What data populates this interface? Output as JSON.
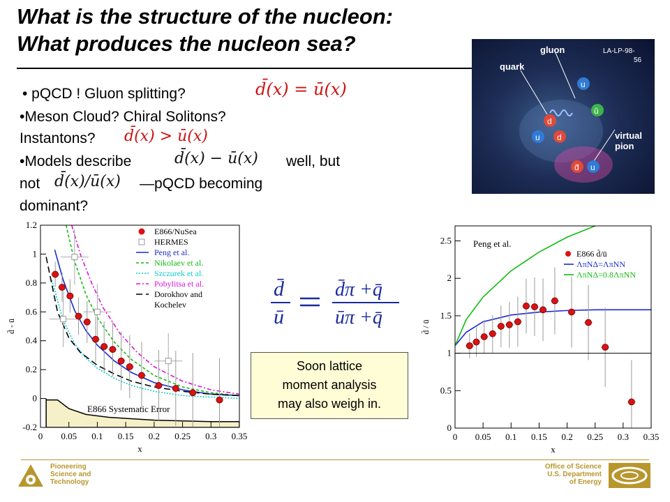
{
  "title": {
    "line1": "What is the structure of the nucleon:",
    "line2": "What produces the nucleon sea?"
  },
  "bullets": {
    "b1": "• pQCD ! Gluon splitting?",
    "b2": "•Meson Cloud?  Chiral Solitons?",
    "b3": "Instantons?",
    "b4a": "•Models describe",
    "b4b": "well, but",
    "b5a": "not",
    "b5b": "—pQCD becoming",
    "b6": "dominant?"
  },
  "equations": {
    "eq1": "d̄(x) = ū(x)",
    "eq2": "d̄(x) > ū(x)",
    "eq3": "d̄(x) − ū(x)",
    "eq4": "d̄(x)/ū(x)",
    "ratio_lhs_num": "d̄",
    "ratio_lhs_den": "ū",
    "ratio_rhs_num": "d̄π +q̄",
    "ratio_rhs_den": "ūπ +q̄"
  },
  "photo": {
    "label_ref": "LA-LP-98-",
    "label_ref2": "56",
    "label_gluon": "gluon",
    "label_quark": "quark",
    "label_virtual": "virtual",
    "label_pion": "pion",
    "q_u": "u",
    "q_d": "d",
    "q_ubar": "ū",
    "q_dbar": "d̄"
  },
  "callout": {
    "line1": "Soon lattice",
    "line2": "moment analysis",
    "line3": "may also weigh in."
  },
  "footer": {
    "left1": "Pioneering",
    "left2": "Science and",
    "left3": "Technology",
    "right1": "Office of Science",
    "right2": "U.S. Department",
    "right3": "of Energy"
  },
  "colors": {
    "accent": "#b8962e",
    "data_red": "#dd1111",
    "peng": "#1a2acc",
    "nikolaev": "#11bb11",
    "szczurek": "#11cccc",
    "pobylitsa": "#dd11dd",
    "dorokhov": "#000000"
  },
  "chart_data": [
    {
      "type": "scatter",
      "xlabel": "x",
      "ylabel": "d̄ - ū",
      "xlim": [
        0,
        0.35
      ],
      "ylim": [
        -0.2,
        1.2
      ],
      "xticks": [
        "0",
        "0.05",
        "0.1",
        "0.15",
        "0.2",
        "0.25",
        "0.3",
        "0.35"
      ],
      "yticks": [
        "-0.2",
        "0",
        "0.2",
        "0.4",
        "0.6",
        "0.8",
        "1",
        "1.2"
      ],
      "annotation": "E866 Systematic Error",
      "legend": {
        "placement": "top-right",
        "entries": [
          "E866/NuSea",
          "HERMES",
          "Peng et al.",
          "Nikolaev et al.",
          "Szczurek et al.",
          "Pobylitsa et al.",
          "Dorokhov and",
          "Kochelev"
        ]
      },
      "series": [
        {
          "name": "E866/NuSea",
          "kind": "points",
          "x": [
            0.026,
            0.038,
            0.052,
            0.067,
            0.082,
            0.097,
            0.112,
            0.127,
            0.142,
            0.157,
            0.178,
            0.208,
            0.238,
            0.268,
            0.315
          ],
          "y": [
            0.86,
            0.77,
            0.71,
            0.57,
            0.53,
            0.41,
            0.36,
            0.34,
            0.26,
            0.22,
            0.16,
            0.09,
            0.07,
            0.04,
            -0.01
          ]
        },
        {
          "name": "HERMES",
          "kind": "open-squares",
          "x": [
            0.04,
            0.1,
            0.06,
            0.225
          ],
          "y": [
            0.55,
            0.6,
            0.98,
            0.26
          ]
        },
        {
          "name": "Peng et al.",
          "kind": "curve",
          "x": [
            0.025,
            0.04,
            0.06,
            0.08,
            0.1,
            0.13,
            0.16,
            0.2,
            0.25,
            0.3,
            0.35
          ],
          "y": [
            1.03,
            0.82,
            0.61,
            0.47,
            0.37,
            0.26,
            0.18,
            0.11,
            0.06,
            0.03,
            0.02
          ]
        },
        {
          "name": "Nikolaev et al.",
          "kind": "curve",
          "x": [
            0.045,
            0.06,
            0.08,
            0.1,
            0.13,
            0.16,
            0.2,
            0.25,
            0.3,
            0.35
          ],
          "y": [
            1.2,
            0.95,
            0.72,
            0.56,
            0.39,
            0.27,
            0.16,
            0.08,
            0.04,
            0.02
          ]
        },
        {
          "name": "Szczurek et al.",
          "kind": "curve",
          "x": [
            0.02,
            0.04,
            0.06,
            0.08,
            0.1,
            0.13,
            0.16,
            0.2,
            0.25,
            0.3,
            0.35
          ],
          "y": [
            0.82,
            0.54,
            0.38,
            0.28,
            0.21,
            0.14,
            0.09,
            0.05,
            0.02,
            0.01,
            0.0
          ]
        },
        {
          "name": "Pobylitsa et al.",
          "kind": "curve",
          "x": [
            0.055,
            0.07,
            0.09,
            0.11,
            0.14,
            0.17,
            0.2,
            0.25,
            0.3,
            0.35
          ],
          "y": [
            1.2,
            1.0,
            0.8,
            0.63,
            0.45,
            0.32,
            0.22,
            0.12,
            0.06,
            0.03
          ]
        },
        {
          "name": "Dorokhov and Kochelev",
          "kind": "curve",
          "x": [
            0.01,
            0.03,
            0.05,
            0.07,
            0.1,
            0.13,
            0.16,
            0.2,
            0.25,
            0.3,
            0.35
          ],
          "y": [
            0.98,
            0.6,
            0.42,
            0.32,
            0.23,
            0.17,
            0.12,
            0.08,
            0.05,
            0.03,
            0.02
          ]
        },
        {
          "name": "E866 Systematic Error",
          "kind": "band",
          "x": [
            0.01,
            0.03,
            0.05,
            0.08,
            0.12,
            0.2,
            0.3,
            0.35
          ],
          "y": [
            -0.01,
            -0.01,
            -0.07,
            -0.11,
            -0.13,
            -0.15,
            -0.16,
            -0.16
          ]
        }
      ]
    },
    {
      "type": "scatter",
      "xlabel": "x",
      "ylabel": "d̄ / ū",
      "xlim": [
        0,
        0.35
      ],
      "ylim": [
        0,
        2.7
      ],
      "xticks": [
        "0",
        "0.05",
        "0.1",
        "0.15",
        "0.2",
        "0.25",
        "0.3",
        "0.35"
      ],
      "yticks": [
        "0",
        "0.5",
        "1",
        "1.5",
        "2",
        "2.5"
      ],
      "annotation": "Peng et al.",
      "legend": {
        "placement": "top-right",
        "entries": [
          "E866 d̄/ū",
          "ΛπNΔ=ΛπNN",
          "ΛπNΔ=0.8ΛπNN"
        ]
      },
      "series": [
        {
          "name": "E866 d̄/ū",
          "kind": "points",
          "x": [
            0.026,
            0.038,
            0.052,
            0.067,
            0.082,
            0.097,
            0.112,
            0.127,
            0.142,
            0.157,
            0.178,
            0.208,
            0.238,
            0.268,
            0.315
          ],
          "y": [
            1.1,
            1.15,
            1.22,
            1.26,
            1.36,
            1.38,
            1.42,
            1.63,
            1.62,
            1.58,
            1.7,
            1.55,
            1.41,
            1.08,
            0.35
          ]
        },
        {
          "name": "ΛπNΔ=ΛπNN",
          "kind": "curve",
          "x": [
            0.0,
            0.02,
            0.05,
            0.1,
            0.15,
            0.2,
            0.25,
            0.3,
            0.35
          ],
          "y": [
            1.1,
            1.28,
            1.42,
            1.51,
            1.55,
            1.57,
            1.58,
            1.58,
            1.58
          ]
        },
        {
          "name": "ΛπNΔ=0.8ΛπNN",
          "kind": "curve",
          "x": [
            0.0,
            0.02,
            0.05,
            0.1,
            0.15,
            0.2,
            0.25,
            0.27
          ],
          "y": [
            1.1,
            1.45,
            1.75,
            2.1,
            2.35,
            2.55,
            2.7,
            2.75
          ]
        }
      ]
    }
  ]
}
